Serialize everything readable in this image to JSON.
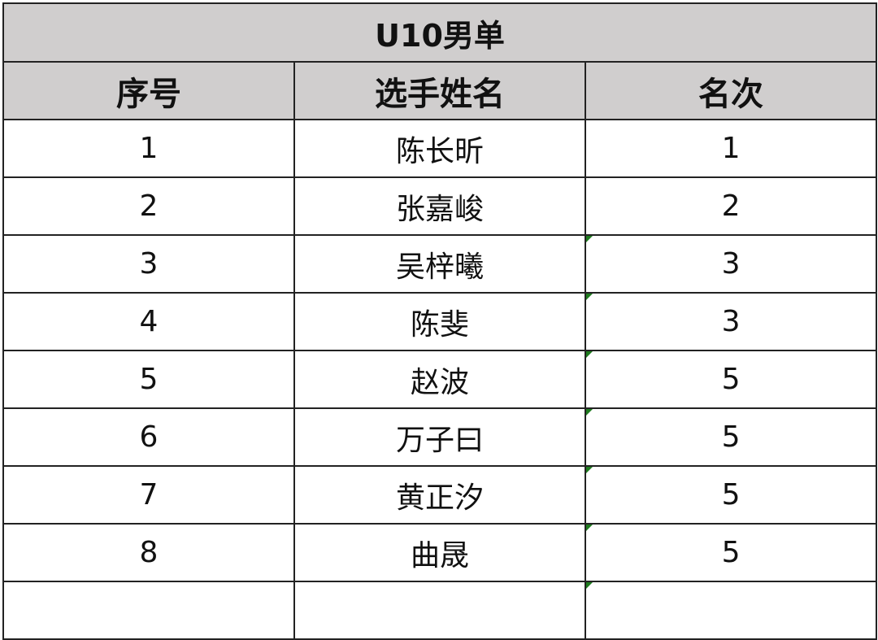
{
  "title": "U10男单",
  "headers": [
    "序号",
    "选手姓名",
    "名次"
  ],
  "rows": [
    {
      "no": "1",
      "name": "陈长昕",
      "rank": "1",
      "flag": false
    },
    {
      "no": "2",
      "name": "张嘉峻",
      "rank": "2",
      "flag": false
    },
    {
      "no": "3",
      "name": "吴梓曦",
      "rank": "3",
      "flag": true
    },
    {
      "no": "4",
      "name": "陈斐",
      "rank": "3",
      "flag": true
    },
    {
      "no": "5",
      "name": "赵波",
      "rank": "5",
      "flag": true
    },
    {
      "no": "6",
      "name": "万子曰",
      "rank": "5",
      "flag": true
    },
    {
      "no": "7",
      "name": "黄正汐",
      "rank": "5",
      "flag": true
    },
    {
      "no": "8",
      "name": "曲晟",
      "rank": "5",
      "flag": true
    }
  ],
  "colors": {
    "header_bg": "#d0cece",
    "error_indicator": "#1e7b1e"
  }
}
